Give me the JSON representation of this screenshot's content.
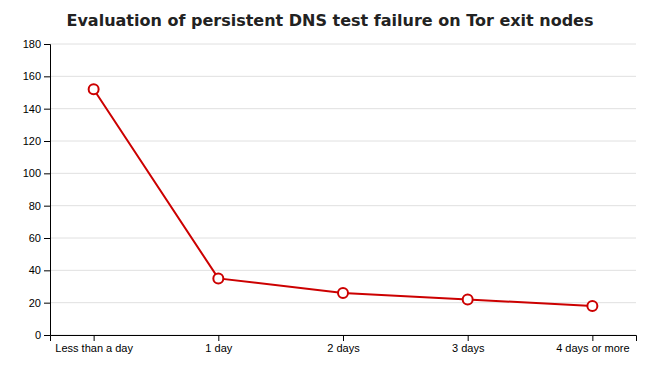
{
  "chart_data": {
    "type": "line",
    "title": "Evaluation of persistent DNS test failure on Tor exit nodes",
    "categories": [
      "Less than a day",
      "1 day",
      "2 days",
      "3 days",
      "4 days or more"
    ],
    "values": [
      152,
      35,
      26,
      22,
      18
    ],
    "color": "#cc0000",
    "marker": "circle",
    "ylim": [
      0,
      180
    ],
    "yticks": [
      0,
      20,
      40,
      60,
      80,
      100,
      120,
      140,
      160,
      180
    ],
    "grid": true
  }
}
